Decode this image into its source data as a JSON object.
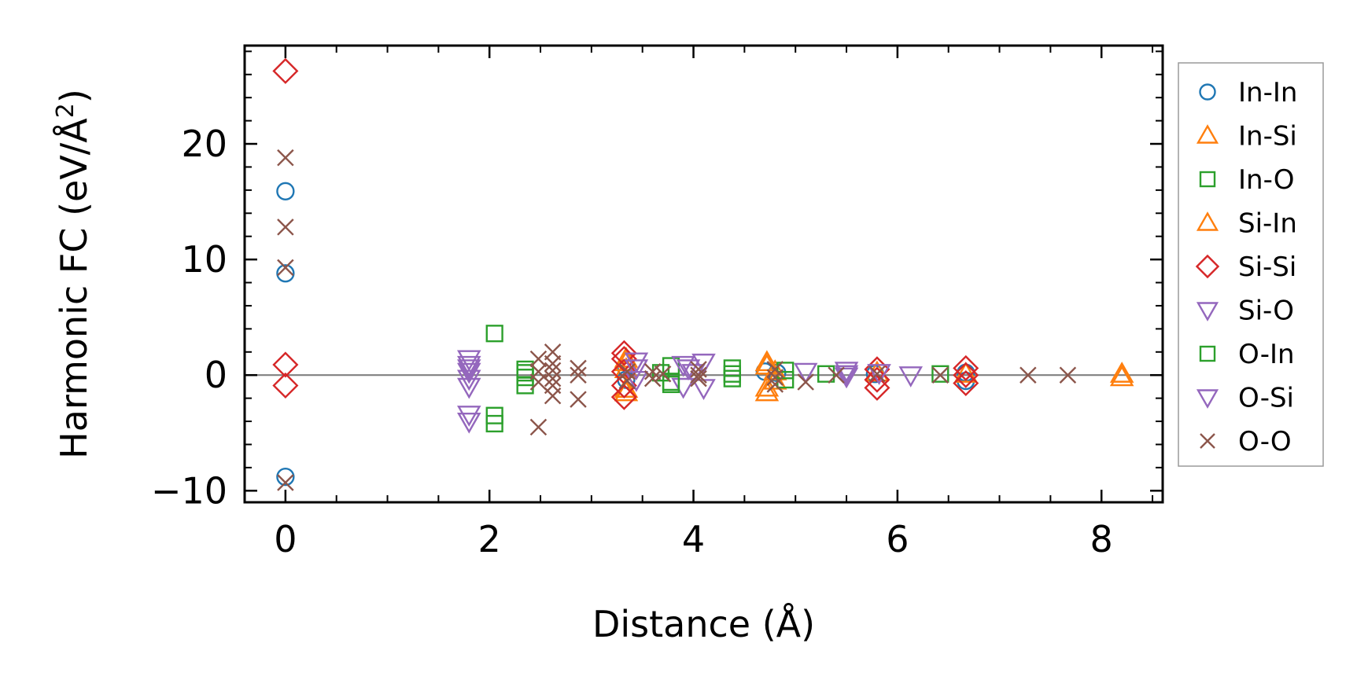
{
  "chart_data": {
    "type": "scatter",
    "title": "",
    "xlabel": "Distance (Å)",
    "ylabel_main": "Harmonic FC (eV/Å",
    "ylabel_sup": "2",
    "ylabel_close": ")",
    "xlim": [
      -0.4,
      8.6
    ],
    "ylim": [
      -11.0,
      28.5
    ],
    "xticks": [
      0,
      2,
      4,
      6,
      8
    ],
    "xtick_labels": [
      "0",
      "2",
      "4",
      "6",
      "8"
    ],
    "yticks": [
      -10,
      0,
      10,
      20
    ],
    "ytick_labels": [
      "−10",
      "0",
      "10",
      "20"
    ],
    "zero_line": true,
    "grid": false,
    "legend_position": "outside-right",
    "series": [
      {
        "name": "In-In",
        "marker": "circle",
        "color": "#1f77b4",
        "points": [
          [
            0,
            15.9
          ],
          [
            0,
            8.8
          ],
          [
            0,
            -8.8
          ],
          [
            3.34,
            0.6
          ],
          [
            3.34,
            -0.4
          ],
          [
            4.7,
            0.3
          ],
          [
            4.82,
            0.2
          ],
          [
            5.78,
            0.1
          ],
          [
            6.67,
            -0.5
          ],
          [
            6.67,
            0.2
          ]
        ]
      },
      {
        "name": "In-Si",
        "marker": "triangle-up",
        "color": "#ff7f0e",
        "points": [
          [
            3.34,
            1.4
          ],
          [
            3.34,
            -1.5
          ],
          [
            3.34,
            0.5
          ],
          [
            4.72,
            1.1
          ],
          [
            4.72,
            -1.5
          ],
          [
            4.8,
            0.3
          ],
          [
            4.8,
            -0.5
          ],
          [
            5.8,
            0.2
          ],
          [
            6.67,
            0.1
          ],
          [
            8.2,
            -0.2
          ]
        ]
      },
      {
        "name": "In-O",
        "marker": "square",
        "color": "#2ca02c",
        "points": [
          [
            2.05,
            3.6
          ],
          [
            2.05,
            -3.5
          ],
          [
            2.05,
            -4.2
          ],
          [
            2.35,
            0.5
          ],
          [
            2.35,
            -0.2
          ],
          [
            2.35,
            -0.9
          ],
          [
            3.68,
            0.2
          ],
          [
            3.78,
            0.8
          ],
          [
            3.78,
            -0.6
          ],
          [
            4.38,
            0.6
          ],
          [
            4.38,
            -0.3
          ],
          [
            4.9,
            0.4
          ],
          [
            4.9,
            -0.4
          ],
          [
            5.3,
            0.1
          ],
          [
            6.42,
            0.1
          ]
        ]
      },
      {
        "name": "Si-In",
        "marker": "triangle-up",
        "color": "#ff7f0e",
        "points": [
          [
            3.34,
            1.1
          ],
          [
            3.34,
            -1.2
          ],
          [
            4.72,
            0.8
          ],
          [
            4.72,
            -1.1
          ],
          [
            8.2,
            0.1
          ]
        ]
      },
      {
        "name": "Si-Si",
        "marker": "diamond",
        "color": "#d62728",
        "points": [
          [
            0,
            26.3
          ],
          [
            0,
            0.9
          ],
          [
            0,
            -0.9
          ],
          [
            3.32,
            1.9
          ],
          [
            3.32,
            1.4
          ],
          [
            3.32,
            -0.9
          ],
          [
            3.32,
            -1.9
          ],
          [
            3.32,
            0.3
          ],
          [
            5.8,
            0.5
          ],
          [
            5.8,
            -1.1
          ],
          [
            5.8,
            -0.4
          ],
          [
            6.67,
            0.6
          ],
          [
            6.67,
            -0.7
          ],
          [
            6.67,
            0.0
          ]
        ]
      },
      {
        "name": "Si-O",
        "marker": "triangle-down",
        "color": "#9467bd",
        "points": [
          [
            1.8,
            1.4
          ],
          [
            1.8,
            0.9
          ],
          [
            1.8,
            0.3
          ],
          [
            1.8,
            -0.3
          ],
          [
            1.8,
            -1.0
          ],
          [
            1.8,
            -3.4
          ],
          [
            1.8,
            -4.0
          ],
          [
            3.44,
            1.2
          ],
          [
            3.44,
            -0.4
          ],
          [
            3.9,
            0.9
          ],
          [
            3.9,
            -1.0
          ],
          [
            3.95,
            0.6
          ],
          [
            4.1,
            1.1
          ],
          [
            4.1,
            -1.1
          ],
          [
            5.1,
            0.3
          ],
          [
            5.5,
            0.4
          ],
          [
            5.5,
            0.1
          ],
          [
            5.82,
            0.2
          ],
          [
            6.13,
            0.0
          ]
        ]
      },
      {
        "name": "O-In",
        "marker": "square",
        "color": "#2ca02c",
        "points": [
          [
            2.35,
            0.2
          ],
          [
            3.78,
            -0.8
          ],
          [
            4.38,
            0.1
          ]
        ]
      },
      {
        "name": "O-Si",
        "marker": "triangle-down",
        "color": "#9467bd",
        "points": [
          [
            1.8,
            0.6
          ],
          [
            3.44,
            0.6
          ],
          [
            4.0,
            0.2
          ],
          [
            5.5,
            -0.1
          ]
        ]
      },
      {
        "name": "O-O",
        "marker": "x",
        "color": "#8c564b",
        "points": [
          [
            0,
            18.8
          ],
          [
            0,
            12.8
          ],
          [
            0,
            9.3
          ],
          [
            0,
            -9.3
          ],
          [
            2.48,
            1.4
          ],
          [
            2.48,
            0.3
          ],
          [
            2.48,
            -0.6
          ],
          [
            2.48,
            -4.5
          ],
          [
            2.62,
            2.0
          ],
          [
            2.62,
            1.0
          ],
          [
            2.62,
            0.4
          ],
          [
            2.62,
            -0.3
          ],
          [
            2.62,
            -0.9
          ],
          [
            2.62,
            -1.8
          ],
          [
            2.87,
            0.6
          ],
          [
            2.87,
            0.0
          ],
          [
            2.87,
            -2.1
          ],
          [
            3.35,
            0.3
          ],
          [
            3.35,
            -0.5
          ],
          [
            3.6,
            0.3
          ],
          [
            3.6,
            -0.3
          ],
          [
            3.7,
            0.1
          ],
          [
            4.05,
            0.5
          ],
          [
            4.05,
            0.0
          ],
          [
            4.05,
            -0.3
          ],
          [
            4.8,
            0.5
          ],
          [
            4.8,
            -0.2
          ],
          [
            4.8,
            -0.8
          ],
          [
            5.1,
            -0.6
          ],
          [
            5.4,
            0.0
          ],
          [
            5.8,
            0.1
          ],
          [
            6.42,
            0.0
          ],
          [
            7.28,
            0.0
          ],
          [
            7.67,
            0.0
          ]
        ]
      }
    ]
  }
}
